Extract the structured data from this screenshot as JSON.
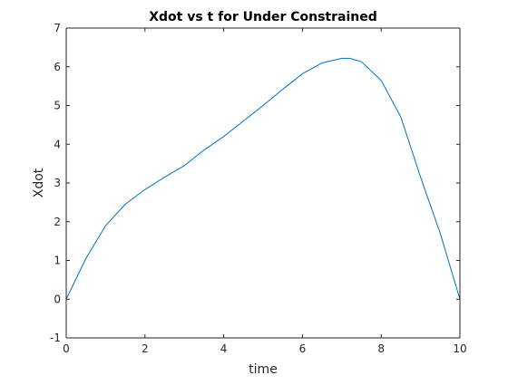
{
  "chart_data": {
    "type": "line",
    "title": "Xdot vs t for Under Constrained",
    "xlabel": "time",
    "ylabel": "Xdot",
    "xlim": [
      0,
      10
    ],
    "ylim": [
      -1,
      7
    ],
    "xticks": [
      0,
      2,
      4,
      6,
      8,
      10
    ],
    "yticks": [
      -1,
      0,
      1,
      2,
      3,
      4,
      5,
      6,
      7
    ],
    "grid": false,
    "legend": "none",
    "line_color": "#0072bd",
    "series": [
      {
        "x": [
          0,
          0.5,
          1,
          1.5,
          2,
          2.5,
          3,
          3.5,
          4,
          4.5,
          5,
          5.5,
          6,
          6.5,
          7,
          7.2,
          7.5,
          8,
          8.5,
          9,
          9.5,
          10
        ],
        "y": [
          0,
          1.05,
          1.9,
          2.45,
          2.83,
          3.15,
          3.45,
          3.85,
          4.2,
          4.6,
          5.0,
          5.42,
          5.82,
          6.1,
          6.22,
          6.22,
          6.13,
          5.65,
          4.7,
          3.15,
          1.7,
          0
        ]
      }
    ]
  }
}
